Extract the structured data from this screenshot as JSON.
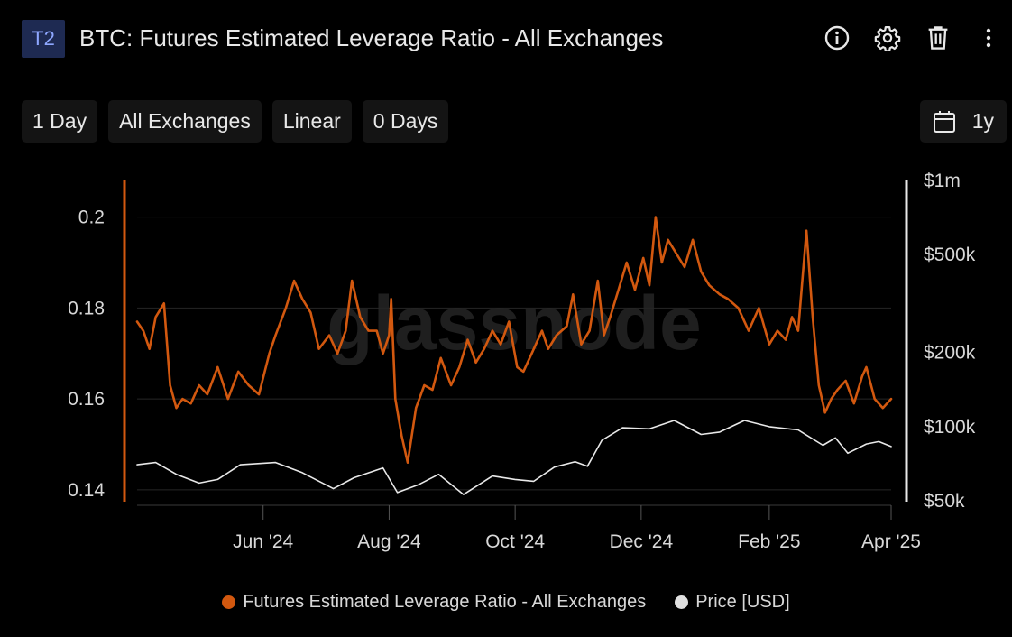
{
  "header": {
    "badge": "T2",
    "title": "BTC: Futures Estimated Leverage Ratio - All Exchanges",
    "icons": [
      "info-icon",
      "gear-icon",
      "trash-icon",
      "more-vertical-icon"
    ]
  },
  "toolbar": {
    "resolution": "1 Day",
    "exchange": "All Exchanges",
    "scale": "Linear",
    "sma": "0 Days",
    "range": "1y",
    "range_icon": "calendar-icon"
  },
  "watermark": "glassnode",
  "colors": {
    "background": "#000000",
    "leverage": "#d2580f",
    "price": "#e8e8e8",
    "grid": "#262626",
    "axis_text": "#d8d8d8",
    "badge_bg": "#1e2a52",
    "badge_text": "#8ea7ff"
  },
  "chart_data": {
    "type": "line",
    "title": "BTC: Futures Estimated Leverage Ratio - All Exchanges",
    "x_ticks": [
      "Jun '24",
      "Aug '24",
      "Oct '24",
      "Dec '24",
      "Feb '25",
      "Apr '25"
    ],
    "x_tick_dates": [
      "2024-06-01",
      "2024-08-01",
      "2024-10-01",
      "2024-12-01",
      "2025-02-01",
      "2025-04-01"
    ],
    "x_range": [
      "2024-04-01",
      "2025-04-01"
    ],
    "y_left": {
      "label": "",
      "ticks": [
        0.14,
        0.16,
        0.18,
        0.2
      ],
      "tick_labels": [
        "0.14",
        "0.16",
        "0.18",
        "0.2"
      ],
      "range": [
        0.138,
        0.2025
      ]
    },
    "y_right": {
      "label": "",
      "scale": "log",
      "ticks": [
        50000,
        100000,
        200000,
        500000,
        1000000
      ],
      "tick_labels": [
        "$50k",
        "$100k",
        "$200k",
        "$500k",
        "$1m"
      ],
      "range": [
        50000,
        1000000
      ]
    },
    "grid": true,
    "legend_position": "bottom-center",
    "series": [
      {
        "name": "Futures Estimated Leverage Ratio - All Exchanges",
        "axis": "left",
        "color": "#d2580f",
        "points": [
          [
            "2024-04-01",
            0.177
          ],
          [
            "2024-04-04",
            0.175
          ],
          [
            "2024-04-07",
            0.171
          ],
          [
            "2024-04-10",
            0.178
          ],
          [
            "2024-04-14",
            0.181
          ],
          [
            "2024-04-17",
            0.163
          ],
          [
            "2024-04-20",
            0.158
          ],
          [
            "2024-04-23",
            0.16
          ],
          [
            "2024-04-27",
            0.159
          ],
          [
            "2024-05-01",
            0.163
          ],
          [
            "2024-05-05",
            0.161
          ],
          [
            "2024-05-10",
            0.167
          ],
          [
            "2024-05-15",
            0.16
          ],
          [
            "2024-05-20",
            0.166
          ],
          [
            "2024-05-25",
            0.163
          ],
          [
            "2024-05-30",
            0.161
          ],
          [
            "2024-06-04",
            0.17
          ],
          [
            "2024-06-07",
            0.174
          ],
          [
            "2024-06-12",
            0.18
          ],
          [
            "2024-06-16",
            0.186
          ],
          [
            "2024-06-20",
            0.182
          ],
          [
            "2024-06-24",
            0.179
          ],
          [
            "2024-06-28",
            0.171
          ],
          [
            "2024-07-03",
            0.174
          ],
          [
            "2024-07-07",
            0.17
          ],
          [
            "2024-07-11",
            0.175
          ],
          [
            "2024-07-14",
            0.186
          ],
          [
            "2024-07-18",
            0.178
          ],
          [
            "2024-07-22",
            0.175
          ],
          [
            "2024-07-26",
            0.175
          ],
          [
            "2024-07-29",
            0.17
          ],
          [
            "2024-08-01",
            0.174
          ],
          [
            "2024-08-02",
            0.182
          ],
          [
            "2024-08-04",
            0.16
          ],
          [
            "2024-08-07",
            0.152
          ],
          [
            "2024-08-10",
            0.146
          ],
          [
            "2024-08-14",
            0.158
          ],
          [
            "2024-08-18",
            0.163
          ],
          [
            "2024-08-22",
            0.162
          ],
          [
            "2024-08-26",
            0.169
          ],
          [
            "2024-08-31",
            0.163
          ],
          [
            "2024-09-04",
            0.167
          ],
          [
            "2024-09-08",
            0.173
          ],
          [
            "2024-09-12",
            0.168
          ],
          [
            "2024-09-16",
            0.171
          ],
          [
            "2024-09-20",
            0.175
          ],
          [
            "2024-09-24",
            0.172
          ],
          [
            "2024-09-28",
            0.177
          ],
          [
            "2024-10-02",
            0.167
          ],
          [
            "2024-10-05",
            0.166
          ],
          [
            "2024-10-09",
            0.17
          ],
          [
            "2024-10-14",
            0.175
          ],
          [
            "2024-10-17",
            0.171
          ],
          [
            "2024-10-21",
            0.174
          ],
          [
            "2024-10-26",
            0.176
          ],
          [
            "2024-10-29",
            0.183
          ],
          [
            "2024-11-02",
            0.172
          ],
          [
            "2024-11-06",
            0.175
          ],
          [
            "2024-11-10",
            0.186
          ],
          [
            "2024-11-13",
            0.174
          ],
          [
            "2024-11-16",
            0.178
          ],
          [
            "2024-11-20",
            0.184
          ],
          [
            "2024-11-24",
            0.19
          ],
          [
            "2024-11-28",
            0.184
          ],
          [
            "2024-12-02",
            0.191
          ],
          [
            "2024-12-05",
            0.185
          ],
          [
            "2024-12-08",
            0.2
          ],
          [
            "2024-12-11",
            0.19
          ],
          [
            "2024-12-14",
            0.195
          ],
          [
            "2024-12-18",
            0.192
          ],
          [
            "2024-12-22",
            0.189
          ],
          [
            "2024-12-26",
            0.195
          ],
          [
            "2024-12-30",
            0.188
          ],
          [
            "2025-01-03",
            0.185
          ],
          [
            "2025-01-08",
            0.183
          ],
          [
            "2025-01-12",
            0.182
          ],
          [
            "2025-01-17",
            0.18
          ],
          [
            "2025-01-22",
            0.175
          ],
          [
            "2025-01-27",
            0.18
          ],
          [
            "2025-02-01",
            0.172
          ],
          [
            "2025-02-05",
            0.175
          ],
          [
            "2025-02-09",
            0.173
          ],
          [
            "2025-02-12",
            0.178
          ],
          [
            "2025-02-15",
            0.175
          ],
          [
            "2025-02-19",
            0.197
          ],
          [
            "2025-02-22",
            0.178
          ],
          [
            "2025-02-25",
            0.163
          ],
          [
            "2025-02-28",
            0.157
          ],
          [
            "2025-03-03",
            0.16
          ],
          [
            "2025-03-06",
            0.162
          ],
          [
            "2025-03-10",
            0.164
          ],
          [
            "2025-03-14",
            0.159
          ],
          [
            "2025-03-18",
            0.165
          ],
          [
            "2025-03-20",
            0.167
          ],
          [
            "2025-03-24",
            0.16
          ],
          [
            "2025-03-28",
            0.158
          ],
          [
            "2025-04-01",
            0.16
          ]
        ]
      },
      {
        "name": "Price [USD]",
        "axis": "right",
        "color": "#e8e8e8",
        "points": [
          [
            "2024-04-01",
            70000
          ],
          [
            "2024-04-10",
            71500
          ],
          [
            "2024-04-20",
            64000
          ],
          [
            "2024-05-01",
            59000
          ],
          [
            "2024-05-10",
            61000
          ],
          [
            "2024-05-21",
            70000
          ],
          [
            "2024-06-07",
            71500
          ],
          [
            "2024-06-20",
            65000
          ],
          [
            "2024-07-05",
            56000
          ],
          [
            "2024-07-15",
            62000
          ],
          [
            "2024-07-29",
            68000
          ],
          [
            "2024-08-05",
            54000
          ],
          [
            "2024-08-15",
            58000
          ],
          [
            "2024-08-25",
            64000
          ],
          [
            "2024-09-06",
            53000
          ],
          [
            "2024-09-20",
            63000
          ],
          [
            "2024-10-01",
            61000
          ],
          [
            "2024-10-10",
            60000
          ],
          [
            "2024-10-20",
            68500
          ],
          [
            "2024-10-30",
            72000
          ],
          [
            "2024-11-05",
            69000
          ],
          [
            "2024-11-12",
            88000
          ],
          [
            "2024-11-22",
            99000
          ],
          [
            "2024-12-05",
            98000
          ],
          [
            "2024-12-17",
            106000
          ],
          [
            "2024-12-30",
            93000
          ],
          [
            "2025-01-08",
            95000
          ],
          [
            "2025-01-20",
            106000
          ],
          [
            "2025-02-01",
            100000
          ],
          [
            "2025-02-15",
            97000
          ],
          [
            "2025-02-27",
            84000
          ],
          [
            "2025-03-05",
            90000
          ],
          [
            "2025-03-11",
            78000
          ],
          [
            "2025-03-20",
            85000
          ],
          [
            "2025-03-26",
            87000
          ],
          [
            "2025-04-01",
            83000
          ]
        ]
      }
    ]
  },
  "legend": {
    "items": [
      {
        "label": "Futures Estimated Leverage Ratio - All Exchanges",
        "color": "#d2580f"
      },
      {
        "label": "Price [USD]",
        "color": "#e0e0e0"
      }
    ]
  }
}
